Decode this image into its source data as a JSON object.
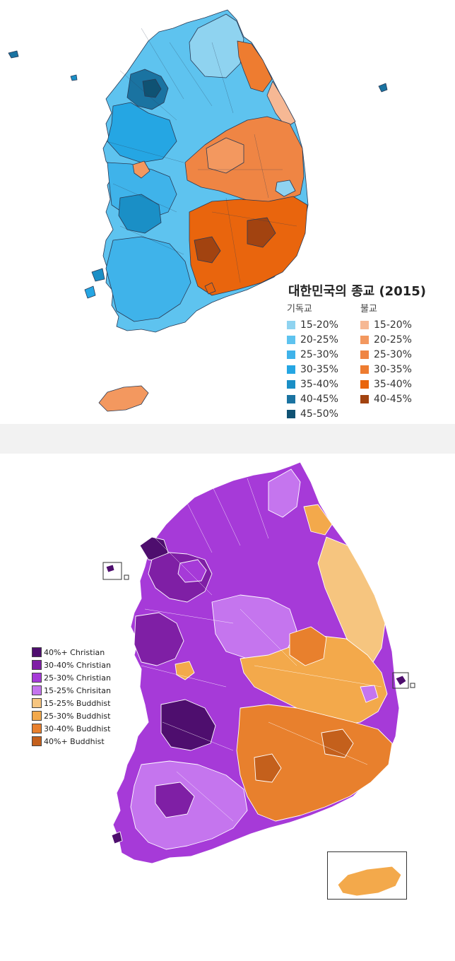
{
  "top_map": {
    "title": "대한민국의 종교 (2015)",
    "christian_header": "기독교",
    "buddhist_header": "불교",
    "christian_legend": [
      {
        "label": "15-20%",
        "color": "#8fd3f0"
      },
      {
        "label": "20-25%",
        "color": "#5ec3ef"
      },
      {
        "label": "25-30%",
        "color": "#3fb3ea"
      },
      {
        "label": "30-35%",
        "color": "#25a6e3"
      },
      {
        "label": "35-40%",
        "color": "#1a8fc6"
      },
      {
        "label": "40-45%",
        "color": "#1a73a1"
      },
      {
        "label": "45-50%",
        "color": "#0f5273"
      }
    ],
    "buddhist_legend": [
      {
        "label": "15-20%",
        "color": "#f6b894"
      },
      {
        "label": "20-25%",
        "color": "#f3985f"
      },
      {
        "label": "25-30%",
        "color": "#ef8544"
      },
      {
        "label": "30-35%",
        "color": "#ee7c30"
      },
      {
        "label": "35-40%",
        "color": "#e9650d"
      },
      {
        "label": "40-45%",
        "color": "#a24310"
      }
    ]
  },
  "bottom_map": {
    "legend": [
      {
        "label": "40%+ Christian",
        "color": "#4e0e6e"
      },
      {
        "label": "30-40% Christian",
        "color": "#7f1fa5"
      },
      {
        "label": "25-30% Christian",
        "color": "#a63ad8"
      },
      {
        "label": "15-25% Chrisitan",
        "color": "#c575ee"
      },
      {
        "label": "15-25% Buddhist",
        "color": "#f6c57f"
      },
      {
        "label": "25-30% Buddhist",
        "color": "#f3a94b"
      },
      {
        "label": "30-40% Buddhist",
        "color": "#e8802d"
      },
      {
        "label": "40%+ Buddhist",
        "color": "#c4601c"
      }
    ]
  }
}
